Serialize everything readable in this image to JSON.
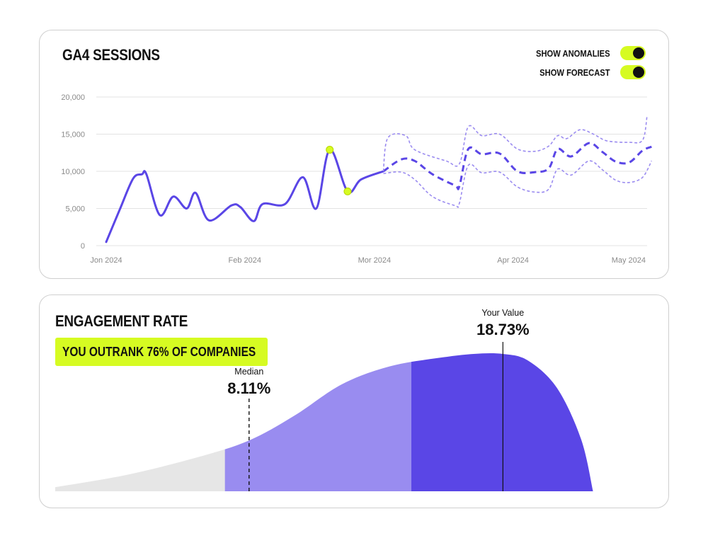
{
  "colors": {
    "accent": "#5a46e6",
    "forecast_band": "#9b8cf0",
    "highlight": "#d6fb22",
    "gridline": "#e3e3e3",
    "low_tier": "#e6e6e6",
    "mid_tier": "#998cf0",
    "top_tier": "#5a46e6"
  },
  "sessions": {
    "title": "GA4 SESSIONS",
    "toggles": [
      {
        "label": "SHOW ANOMALIES",
        "on": true
      },
      {
        "label": "SHOW FORECAST",
        "on": true
      }
    ]
  },
  "chart_data": [
    {
      "type": "line",
      "title": "GA4 SESSIONS",
      "ylim": [
        0,
        20000
      ],
      "yticks": [
        0,
        5000,
        10000,
        15000,
        20000
      ],
      "ytick_labels": [
        "0",
        "5,000",
        "10,000",
        "15,000",
        "20,000"
      ],
      "xlim": [
        "2024-01-01",
        "2024-05-01"
      ],
      "xticks": [
        "2024-01-01",
        "2024-02-01",
        "2024-03-01",
        "2024-04-01",
        "2024-05-01"
      ],
      "xtick_labels": [
        "Jon 2024",
        "Feb 2024",
        "Mor 2024",
        "Apr 2024",
        "May 2024"
      ],
      "grid": true,
      "series": [
        {
          "role": "actual",
          "style": "solid",
          "points": [
            [
              "2024-01-01",
              500
            ],
            [
              "2024-01-04",
              4800
            ],
            [
              "2024-01-07",
              9000
            ],
            [
              "2024-01-09",
              9600
            ],
            [
              "2024-01-10",
              9600
            ],
            [
              "2024-01-13",
              4100
            ],
            [
              "2024-01-16",
              6600
            ],
            [
              "2024-01-19",
              5000
            ],
            [
              "2024-01-21",
              7100
            ],
            [
              "2024-01-24",
              3400
            ],
            [
              "2024-01-29",
              5400
            ],
            [
              "2024-01-31",
              5200
            ],
            [
              "2024-02-03",
              3300
            ],
            [
              "2024-02-05",
              5600
            ],
            [
              "2024-02-10",
              5600
            ],
            [
              "2024-02-14",
              9200
            ],
            [
              "2024-02-17",
              5000
            ],
            [
              "2024-02-20",
              12900
            ],
            [
              "2024-02-24",
              7300
            ],
            [
              "2024-02-27",
              8900
            ],
            [
              "2024-03-03",
              10000
            ]
          ]
        },
        {
          "role": "forecast",
          "style": "dashed",
          "points": [
            [
              "2024-03-03",
              10000
            ],
            [
              "2024-03-07",
              11600
            ],
            [
              "2024-03-10",
              11400
            ],
            [
              "2024-03-14",
              9600
            ],
            [
              "2024-03-19",
              8100
            ],
            [
              "2024-03-20",
              8000
            ],
            [
              "2024-03-22",
              13000
            ],
            [
              "2024-03-25",
              12300
            ],
            [
              "2024-03-29",
              12400
            ],
            [
              "2024-04-02",
              10000
            ],
            [
              "2024-04-06",
              9900
            ],
            [
              "2024-04-09",
              10400
            ],
            [
              "2024-04-11",
              13000
            ],
            [
              "2024-04-14",
              12000
            ],
            [
              "2024-04-18",
              13800
            ],
            [
              "2024-04-21",
              12600
            ],
            [
              "2024-04-24",
              11300
            ],
            [
              "2024-04-27",
              11200
            ],
            [
              "2024-04-30",
              12800
            ],
            [
              "2024-05-02",
              13300
            ]
          ]
        },
        {
          "role": "forecast-upper",
          "style": "dotted",
          "points": [
            [
              "2024-03-03",
              10000
            ],
            [
              "2024-03-04",
              14500
            ],
            [
              "2024-03-08",
              14800
            ],
            [
              "2024-03-10",
              12900
            ],
            [
              "2024-03-17",
              11400
            ],
            [
              "2024-03-20",
              11000
            ],
            [
              "2024-03-22",
              16000
            ],
            [
              "2024-03-25",
              14800
            ],
            [
              "2024-03-29",
              15000
            ],
            [
              "2024-04-02",
              13000
            ],
            [
              "2024-04-06",
              12700
            ],
            [
              "2024-04-09",
              13400
            ],
            [
              "2024-04-11",
              14800
            ],
            [
              "2024-04-13",
              14400
            ],
            [
              "2024-04-16",
              15600
            ],
            [
              "2024-04-19",
              15000
            ],
            [
              "2024-04-22",
              14100
            ],
            [
              "2024-04-27",
              13900
            ],
            [
              "2024-04-30",
              14200
            ],
            [
              "2024-05-01",
              17500
            ]
          ]
        },
        {
          "role": "forecast-lower",
          "style": "dotted",
          "points": [
            [
              "2024-03-03",
              9700
            ],
            [
              "2024-03-07",
              9900
            ],
            [
              "2024-03-10",
              8900
            ],
            [
              "2024-03-14",
              6600
            ],
            [
              "2024-03-19",
              5400
            ],
            [
              "2024-03-20",
              5700
            ],
            [
              "2024-03-22",
              10800
            ],
            [
              "2024-03-25",
              9800
            ],
            [
              "2024-03-29",
              9900
            ],
            [
              "2024-04-02",
              7900
            ],
            [
              "2024-04-06",
              7200
            ],
            [
              "2024-04-09",
              7600
            ],
            [
              "2024-04-11",
              10300
            ],
            [
              "2024-04-14",
              9500
            ],
            [
              "2024-04-18",
              11400
            ],
            [
              "2024-04-21",
              10200
            ],
            [
              "2024-04-24",
              8800
            ],
            [
              "2024-04-27",
              8500
            ],
            [
              "2024-04-30",
              9200
            ],
            [
              "2024-05-02",
              11400
            ]
          ]
        }
      ],
      "anomalies": [
        {
          "x": "2024-02-20",
          "y": 12900
        },
        {
          "x": "2024-02-24",
          "y": 7300
        }
      ]
    },
    {
      "type": "area",
      "title": "ENGAGEMENT RATE",
      "subtitle": "YOU OUTRANK 76% OF COMPANIES",
      "xlim": [
        0,
        25
      ],
      "curve": [
        [
          0,
          0.03
        ],
        [
          3,
          0.12
        ],
        [
          6,
          0.25
        ],
        [
          8.11,
          0.37
        ],
        [
          10,
          0.55
        ],
        [
          12,
          0.78
        ],
        [
          14,
          0.91
        ],
        [
          16,
          0.97
        ],
        [
          17.5,
          1.0
        ],
        [
          18.73,
          1.0
        ],
        [
          19.8,
          0.95
        ],
        [
          21,
          0.75
        ],
        [
          22,
          0.38
        ],
        [
          22.5,
          0
        ]
      ],
      "bands": [
        {
          "from": 0,
          "to": 7.1,
          "tier": "low"
        },
        {
          "from": 7.1,
          "to": 14.9,
          "tier": "mid"
        },
        {
          "from": 14.9,
          "to": 22.5,
          "tier": "top"
        }
      ],
      "markers": [
        {
          "label": "Median",
          "value_text": "8.11%",
          "x": 8.11,
          "style": "dashed"
        },
        {
          "label": "Your Value",
          "value_text": "18.73%",
          "x": 18.73,
          "style": "solid"
        }
      ]
    }
  ],
  "engagement": {
    "title": "ENGAGEMENT RATE",
    "badge_prefix": "YOU OUTRANK ",
    "badge_value": "76%",
    "badge_suffix": " OF COMPANIES"
  }
}
